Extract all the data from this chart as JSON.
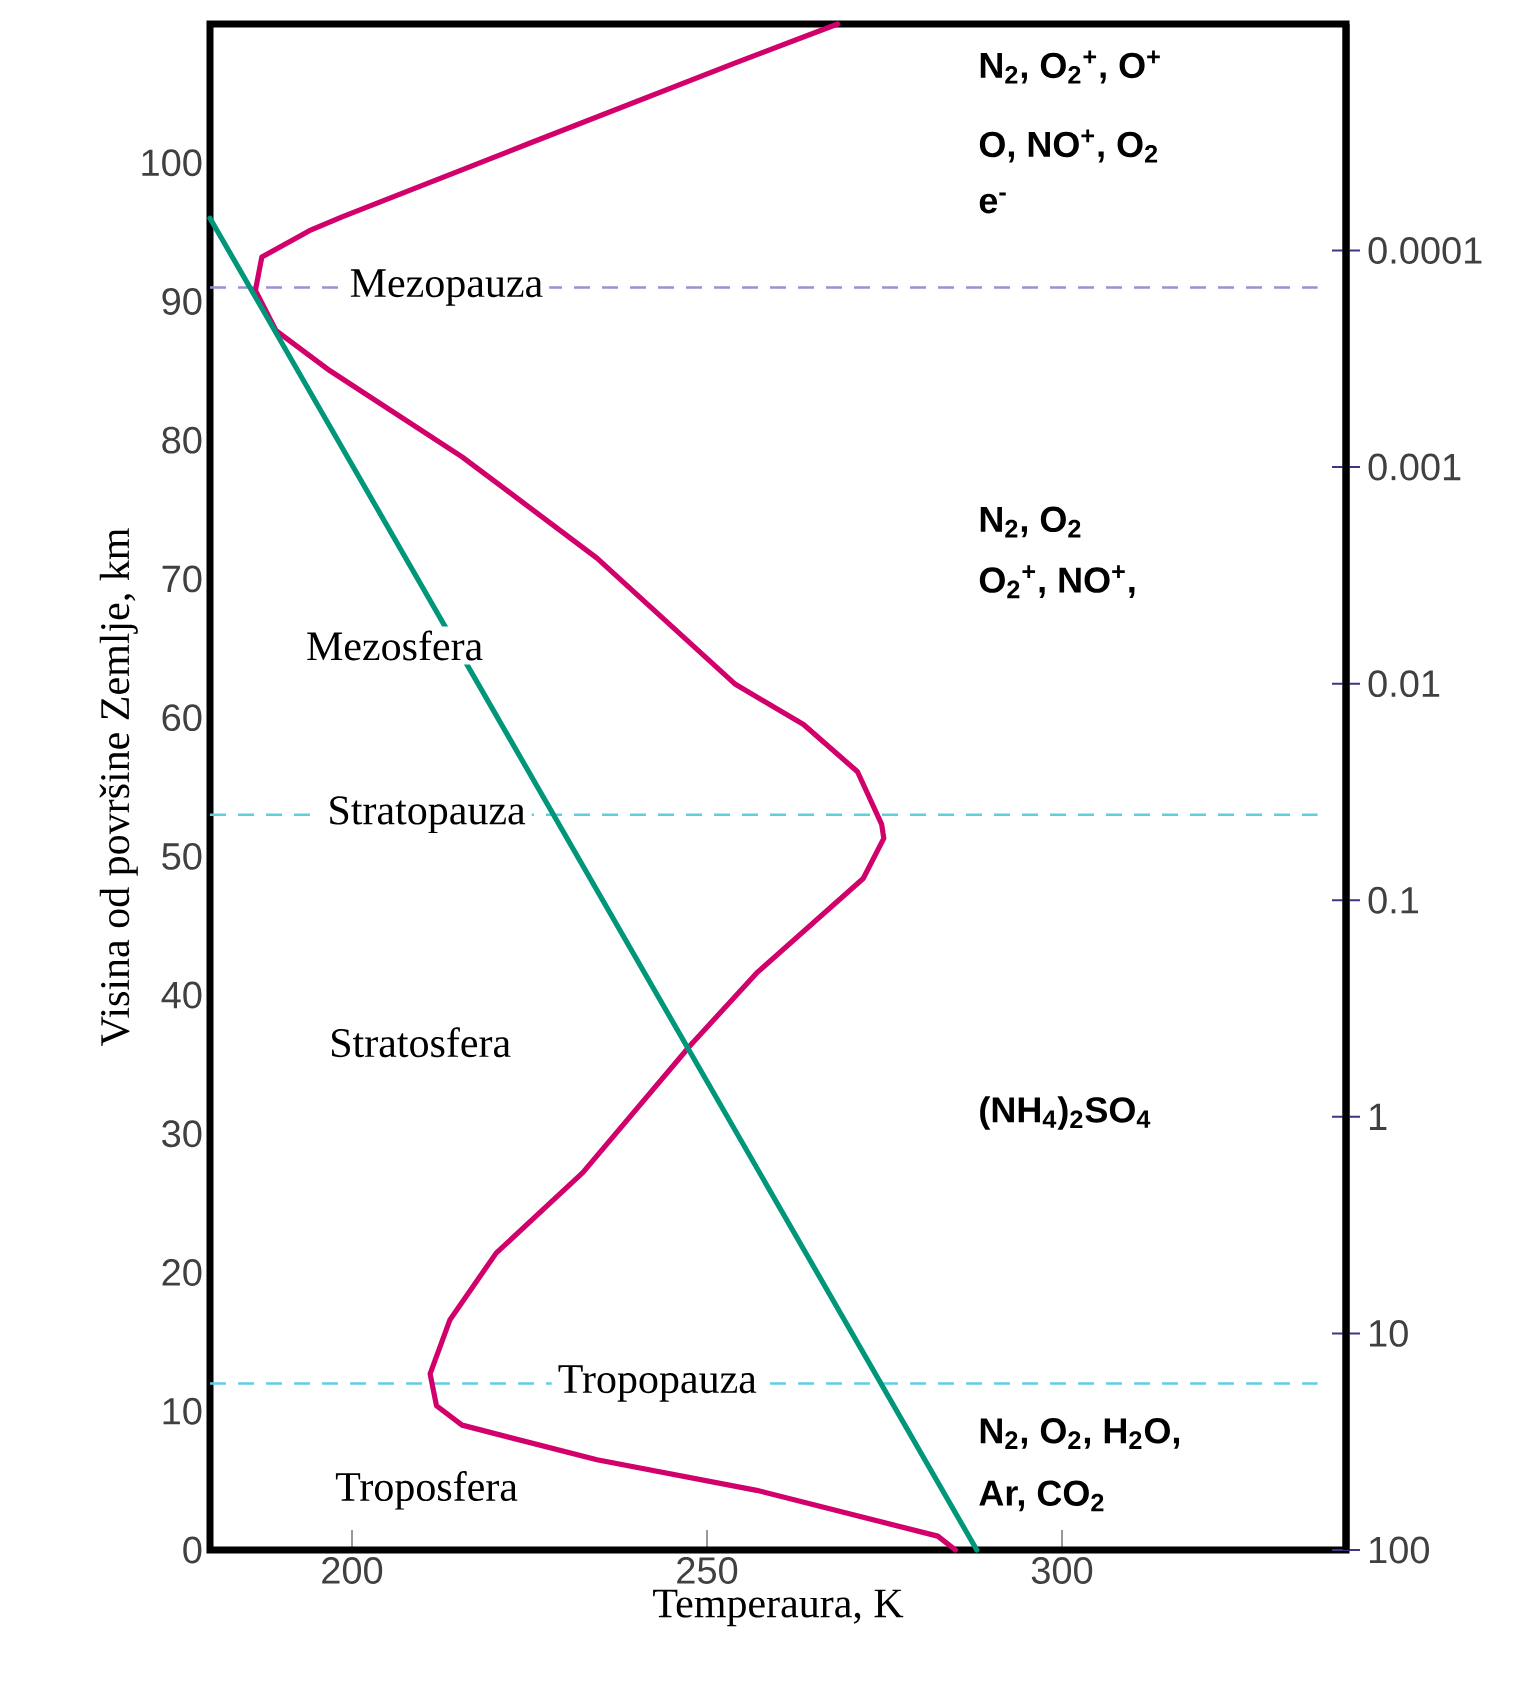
{
  "chart_data": {
    "type": "line",
    "xlabel": "Temperaura, K",
    "ylabel": "Visina od površine Zemlje, km",
    "xlim": [
      180,
      340
    ],
    "xticks": [
      200,
      250,
      300
    ],
    "ylim": [
      0,
      110
    ],
    "yticks": [
      0,
      10,
      20,
      30,
      40,
      50,
      60,
      70,
      80,
      90,
      100
    ],
    "y2lim": [
      100,
      9e-06
    ],
    "log": "y2",
    "y2ticks": [
      100,
      10,
      1,
      0.1,
      0.01,
      0.001,
      0.0001
    ],
    "series": [
      {
        "color": "#d1006b",
        "x": [
          285,
          282.5,
          257,
          234.5,
          215.5,
          211.9,
          211,
          213.8,
          220.3,
          232.5,
          247.7,
          257,
          272,
          274.9,
          274.6,
          271.2,
          263.6,
          254,
          234.5,
          215.5,
          196.9,
          189.3,
          186.4,
          187.3,
          194,
          198.6,
          225,
          254,
          268.4
        ],
        "values": [
          0,
          1,
          4.3,
          6.5,
          9,
          10.4,
          12.7,
          16.6,
          21.4,
          27.2,
          36.4,
          41.6,
          48.4,
          51.3,
          52.3,
          56.1,
          59.5,
          62.4,
          71.5,
          78.8,
          85,
          87.9,
          90.8,
          93.2,
          95.1,
          96.1,
          101.4,
          107.2,
          110
        ]
      },
      {
        "color": "#00967a",
        "x": [
          180,
          288
        ],
        "values": [
          96,
          0
        ]
      }
    ],
    "ref_lines": [
      {
        "axis": "y",
        "value": 91,
        "label": "Mezopauza",
        "color": "#9a90d4",
        "line_style": "dashed"
      },
      {
        "axis": "y",
        "value": 53,
        "label": "Stratopauza",
        "color": "#5fd0e0",
        "line_style": "dashed"
      },
      {
        "axis": "y",
        "value": 12,
        "label": "Tropopauza",
        "color": "#5fd0e0",
        "line_style": "dashed"
      }
    ],
    "annotations": [
      "Mezosfera",
      "Stratosfera",
      "Troposfera",
      "N$_{2}$, O$_{2}$$^{+}$, O$^{+}$",
      "O, NO$^{+}$, O$_{2}$",
      "e$^{-}$",
      "N$_{2}$, O$_{2}$",
      "O$_{2}$$^{+}$, NO$^{+}$,",
      "(NH$_{4}$)$_{2}$SO$_{4}$",
      "N$_{2}$, O$_{2}$, H$_{2}$O,",
      "Ar, CO$_{2}$"
    ]
  }
}
